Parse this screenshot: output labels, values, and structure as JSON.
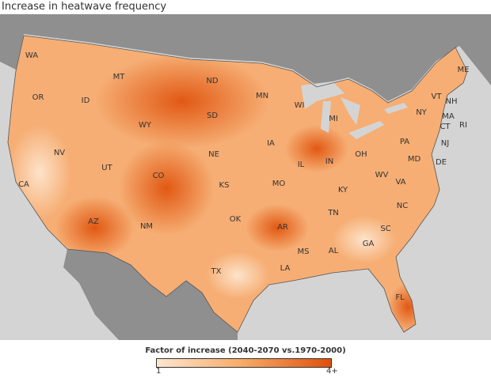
{
  "title": "Increase in heatwave frequency",
  "legend": {
    "title": "Factor of increase (2040-2070 vs.1970-2000)",
    "min": "1",
    "max": "4+",
    "color_low": "#fde6cf",
    "color_high": "#e0500c"
  },
  "states": [
    "WA",
    "OR",
    "CA",
    "ID",
    "NV",
    "MT",
    "WY",
    "UT",
    "AZ",
    "CO",
    "NM",
    "ND",
    "SD",
    "NE",
    "KS",
    "OK",
    "TX",
    "MN",
    "IA",
    "MO",
    "AR",
    "LA",
    "WI",
    "IL",
    "MS",
    "MI",
    "IN",
    "KY",
    "TN",
    "AL",
    "OH",
    "GA",
    "FL",
    "WV",
    "VA",
    "NC",
    "SC",
    "PA",
    "NY",
    "MD",
    "DE",
    "NJ",
    "VT",
    "NH",
    "ME",
    "MA",
    "CT",
    "RI"
  ]
}
